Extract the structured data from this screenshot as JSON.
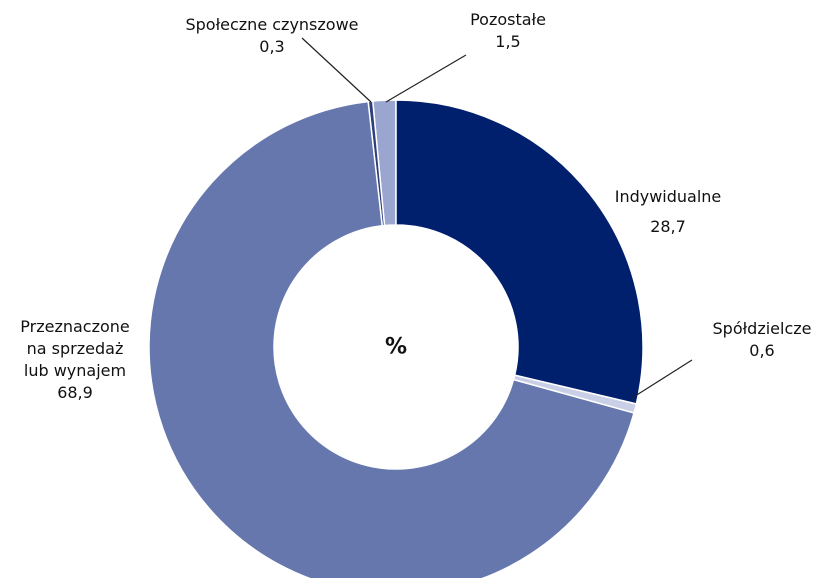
{
  "chart_data": {
    "type": "donut",
    "center_label": "%",
    "categories": [
      "Indywidualne",
      "Spółdzielcze",
      "Przeznaczone\nna sprzedaż\nlub wynajem",
      "Społeczne czynszowe",
      "Pozostałe"
    ],
    "values": [
      28.7,
      0.6,
      68.9,
      0.3,
      1.5
    ],
    "value_labels": [
      "28,7",
      "0,6",
      "68,9",
      "0,3",
      "1,5"
    ],
    "colors": [
      "#00206e",
      "#c9cfe6",
      "#6577ad",
      "#2e3f7e",
      "#9aa6d0"
    ]
  }
}
